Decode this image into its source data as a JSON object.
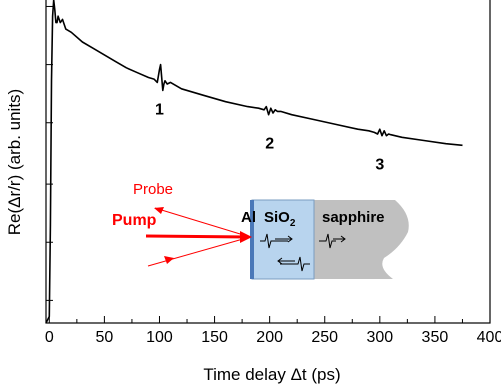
{
  "chart_data": {
    "type": "line",
    "xlabel": "Time delay Δt (ps)",
    "ylabel": "Re(Δr/r) (arb. units)",
    "xlim": [
      -3,
      400
    ],
    "ylim": [
      0,
      1
    ],
    "x_ticks": [
      0,
      50,
      100,
      150,
      200,
      250,
      300,
      350,
      400
    ],
    "x_tick_labels": [
      "0",
      "50",
      "100",
      "150",
      "200",
      "250",
      "300",
      "350",
      "400"
    ],
    "y_ticks_unlabeled": [
      0.07,
      0.25,
      0.43,
      0.62,
      0.8,
      0.98
    ],
    "grid": false,
    "series": [
      {
        "x": [
          -3,
          0,
          1,
          2,
          3,
          4,
          5,
          6,
          7,
          8,
          10,
          12,
          15,
          20,
          30,
          40,
          50,
          60,
          70,
          80,
          90,
          95,
          98,
          100,
          101,
          102,
          103,
          104,
          105,
          107,
          110,
          120,
          140,
          160,
          180,
          190,
          195,
          197,
          199,
          201,
          203,
          205,
          207,
          210,
          220,
          240,
          260,
          280,
          290,
          295,
          298,
          300,
          302,
          304,
          306,
          308,
          310,
          320,
          340,
          360,
          375
        ],
        "y": [
          0.0,
          0.02,
          0.3,
          0.75,
          0.95,
          1.0,
          0.97,
          0.93,
          0.93,
          0.95,
          0.93,
          0.94,
          0.91,
          0.9,
          0.87,
          0.85,
          0.83,
          0.81,
          0.79,
          0.775,
          0.76,
          0.755,
          0.745,
          0.785,
          0.8,
          0.76,
          0.72,
          0.74,
          0.75,
          0.74,
          0.745,
          0.725,
          0.705,
          0.685,
          0.67,
          0.665,
          0.66,
          0.67,
          0.645,
          0.665,
          0.65,
          0.66,
          0.655,
          0.655,
          0.645,
          0.63,
          0.615,
          0.6,
          0.595,
          0.59,
          0.585,
          0.6,
          0.58,
          0.595,
          0.58,
          0.585,
          0.583,
          0.575,
          0.565,
          0.555,
          0.55
        ]
      }
    ],
    "annotations": [
      {
        "text": "1",
        "x": 100,
        "y": 0.645
      },
      {
        "text": "2",
        "x": 200,
        "y": 0.54
      },
      {
        "text": "3",
        "x": 300,
        "y": 0.475
      }
    ]
  },
  "inset": {
    "probe_label": "Probe",
    "pump_label": "Pump",
    "metal_label": "Al",
    "oxide_label": "SiO",
    "oxide_subscript": "2",
    "substrate_label": "sapphire",
    "colors": {
      "beams": "#ff0000",
      "oxide_layer": "#b8d4ee",
      "metal_layer": "#4a78b8",
      "substrate": "#c0c0c0"
    }
  }
}
